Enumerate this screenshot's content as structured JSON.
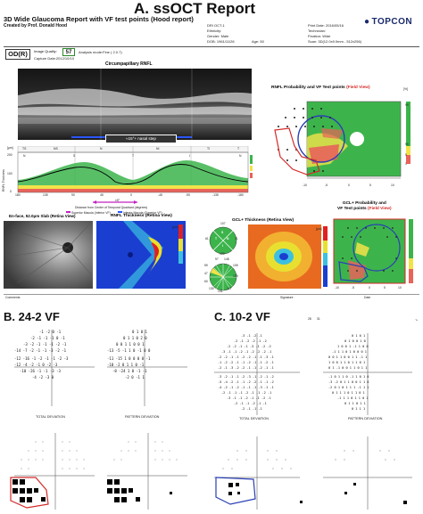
{
  "sectionA": {
    "title": "A. ssOCT Report",
    "report_title": "3D Wide Glaucoma Report with VF test points (Hood report)",
    "created_by": "Created by Prof. Donald Hood",
    "header_fields": {
      "dri": "DRI OCT-1",
      "ethnicity": "Ethnicity:",
      "gender": "Gender: Male",
      "dob": "DOB: 1961/11/26",
      "age": "Age: 50",
      "print_date": "Print Date: 2016/05/16",
      "technician": "Technician:",
      "fixation": "Fixation: Wide",
      "scan": "Scan: 3D(12.0x9.0mm - 512x256)"
    },
    "logo": "TOPCON",
    "eye": "OD(R)",
    "image_quality_label": "Image Quality:",
    "image_quality_value": "57",
    "analysis_mode": "Analysis mode:Fine ( 2.0.7)",
    "capture_date": "Capture Date:2012/10/10",
    "panels": {
      "circumpapillary": "Circumpapillary RNFL",
      "rnfl_prob": "RNFL Probability and VF Test points",
      "rnfl_prob_field": "(Field View)",
      "enface": "En-face, 52.0μm Slab (Retina View)",
      "rnfl_thick": "RNFL Thickness (Retina View)",
      "gcl_thick": "GCL+ Thickness (Retina View)",
      "gcl_prob_l1": "GCL+ Probability and",
      "gcl_prob_l2": "VF Test points",
      "gcl_prob_field": "(Field View)"
    },
    "nasal_step_label": "≈15°+ nasal step",
    "rnfl_axis_label": "RNFL Thickness",
    "rnfl_axis_unit": "[μm]",
    "sector_labels": [
      "TS",
      "NS",
      "N",
      "NI",
      "TI",
      "T"
    ],
    "cp_quadrants": [
      "N",
      "S",
      "T",
      "I",
      "N"
    ],
    "cp_x_ticks": [
      "180",
      "135",
      "90",
      "45",
      "0",
      "-45",
      "-90",
      "-135",
      "-180"
    ],
    "cp_y_ticks": [
      "200",
      "100",
      "0"
    ],
    "distance_label": "Distance from Center of Temporal Quadrant (degrees)",
    "legend_sup": "Superior Macula (Inferior VF)",
    "legend_inf": "Inferior Macula (Superior VF)",
    "deg_label": "±5°",
    "clock": {
      "T": "T",
      "N": "N",
      "S": "S",
      "I": "I",
      "top": "107",
      "left": "61",
      "right": "71",
      "bottom": "120"
    },
    "sector12": {
      "top": "97",
      "top2": "148",
      "left1": "59",
      "left2": "47",
      "left3": "60",
      "right1": "105",
      "right2": "129",
      "bottom1": "130",
      "bottom2": "141",
      "bottom3": "117"
    },
    "colorbar_ticks": [
      "[%]",
      "99",
      "95",
      "5",
      "1"
    ],
    "colorbar_um": "[μm]",
    "prob_axis_ticks": [
      "-10",
      "-5",
      "0",
      "5",
      "10"
    ],
    "footer": {
      "comments": "Comments",
      "signature": "Signature",
      "date": "Date"
    }
  },
  "sectionB": {
    "title": "B. 24-2 VF",
    "total_deviation": "TOTAL DEVIATION",
    "pattern_deviation": "PATTERN DEVIATION",
    "td_values": [
      [
        "-1",
        "-2",
        "0",
        "-1"
      ],
      [
        "-2",
        "-1",
        "-1",
        "-1",
        "0",
        "-1"
      ],
      [
        "-3",
        "-2",
        "-1",
        "-1",
        "-1",
        "-2",
        "-1"
      ],
      [
        "-14",
        "-7",
        "-2",
        "-1",
        "-1",
        "-3",
        "-2",
        "-1"
      ],
      [
        "-12",
        "-16",
        "-1",
        "-2",
        "-1",
        "-1",
        "-2",
        "-3"
      ],
      [
        "-12",
        "-4",
        "-2",
        "-1",
        "0",
        "-2",
        "-3"
      ],
      [
        "-10",
        "-26",
        "-1",
        "-1",
        "-3",
        "-3"
      ],
      [
        "-4",
        "-2",
        "-3",
        "0"
      ]
    ],
    "pd_values": [
      [
        "0",
        "1",
        "0",
        "1"
      ],
      [
        "0",
        "1",
        "1",
        "0",
        "2",
        "0"
      ],
      [
        "0",
        "0",
        "1",
        "1",
        "0",
        "0",
        "1"
      ],
      [
        "-13",
        "-5",
        "-1",
        "1",
        "0",
        "-1",
        "0",
        "0"
      ],
      [
        "-11",
        "-15",
        "1",
        "0",
        "0",
        "0",
        "0",
        "-1"
      ],
      [
        "-10",
        "-2",
        "0",
        "1",
        "1",
        "0",
        "-1"
      ],
      [
        "-8",
        "-24",
        "1",
        "0",
        "-1",
        "-1"
      ],
      [
        "-2",
        "0",
        "-1",
        "1"
      ]
    ]
  },
  "sectionC": {
    "title": "C. 10-2 VF",
    "total_deviation": "TOTAL DEVIATION",
    "pattern_deviation": "PATTERN DEVIATION",
    "top_marker": "28",
    "top_marker2": "31",
    "corner_mark": "↘"
  },
  "colors": {
    "red_outline": "#d42a2a",
    "blue_outline": "#2a3fb5",
    "topcon": "#1a2a6c",
    "green_bg": "#3cb44b",
    "yellow_band": "#f2e349",
    "red_band": "#e8635a"
  }
}
